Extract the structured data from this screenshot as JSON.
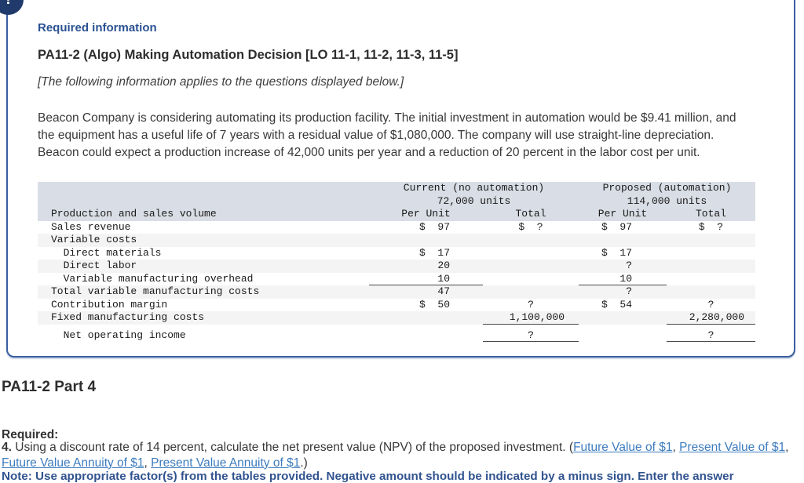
{
  "alert": {
    "icon": "!"
  },
  "info_box": {
    "required_info_label": "Required information",
    "title": "PA11-2 (Algo) Making Automation Decision [LO 11-1, 11-2, 11-3, 11-5]",
    "applies_note": "[The following information applies to the questions displayed below.]",
    "description": "Beacon Company is considering automating its production facility. The initial investment in automation would be $9.41 million, and the equipment has a useful life of 7 years with a residual value of $1,080,000. The company will use straight-line depreciation. Beacon could expect a production increase of 42,000 units per year and a reduction of 20 percent in the labor cost per unit."
  },
  "table": {
    "group_headers": [
      {
        "title": "Current (no automation)",
        "subtitle": "72,000 units"
      },
      {
        "title": "Proposed (automation)",
        "subtitle": "114,000 units"
      }
    ],
    "row_header_label": "Production and sales volume",
    "col_headers": [
      "Per Unit",
      "Total",
      "Per Unit",
      "Total"
    ],
    "rows": [
      {
        "label": "Sales revenue",
        "c2": "$  97",
        "c3": "$  ?",
        "c4": "$  97",
        "c5": "$  ?"
      },
      {
        "label": "Variable costs",
        "c2": "",
        "c3": "",
        "c4": "",
        "c5": ""
      },
      {
        "label": "  Direct materials",
        "c2": "$  17",
        "c3": "",
        "c4": "$  17",
        "c5": ""
      },
      {
        "label": "  Direct labor",
        "c2": "20",
        "c3": "",
        "c4": "?",
        "c5": ""
      },
      {
        "label": "  Variable manufacturing overhead",
        "c2": "10",
        "c3": "",
        "c4": "10",
        "c5": ""
      },
      {
        "label": "Total variable manufacturing costs",
        "c2": "47",
        "c3": "",
        "c4": "?",
        "c5": ""
      },
      {
        "label": "Contribution margin",
        "c2": "$  50",
        "c3": "?",
        "c4": "$  54",
        "c5": "?"
      },
      {
        "label": "Fixed manufacturing costs",
        "c2": "",
        "c3": "1,100,000",
        "c4": "",
        "c5": "2,280,000"
      },
      {
        "label": "  Net operating income",
        "c2": "",
        "c3": "?",
        "c4": "",
        "c5": "?"
      }
    ]
  },
  "part_heading": "PA11-2 Part 4",
  "required_label": "Required:",
  "question": {
    "number": "4.",
    "text_before_links": " Using a discount rate of 14 percent, calculate the net present value (NPV) of the proposed investment. (",
    "links": [
      "Future Value of $1",
      "Present Value of $1",
      "Future Value Annuity of $1",
      "Present Value Annuity of $1"
    ],
    "separator": ", ",
    "text_after_links": ".)"
  },
  "note_line": "Note: Use appropriate factor(s) from the tables provided. Negative amount should be indicated by a minus sign. Enter the answer",
  "colors": {
    "accent_navy": "#2b5292",
    "box_border": "#3a5f9f",
    "link_blue": "#3d7cbe",
    "table_header_bg": "#d9dde5",
    "row_alt_bg": "#f4f4f4"
  }
}
